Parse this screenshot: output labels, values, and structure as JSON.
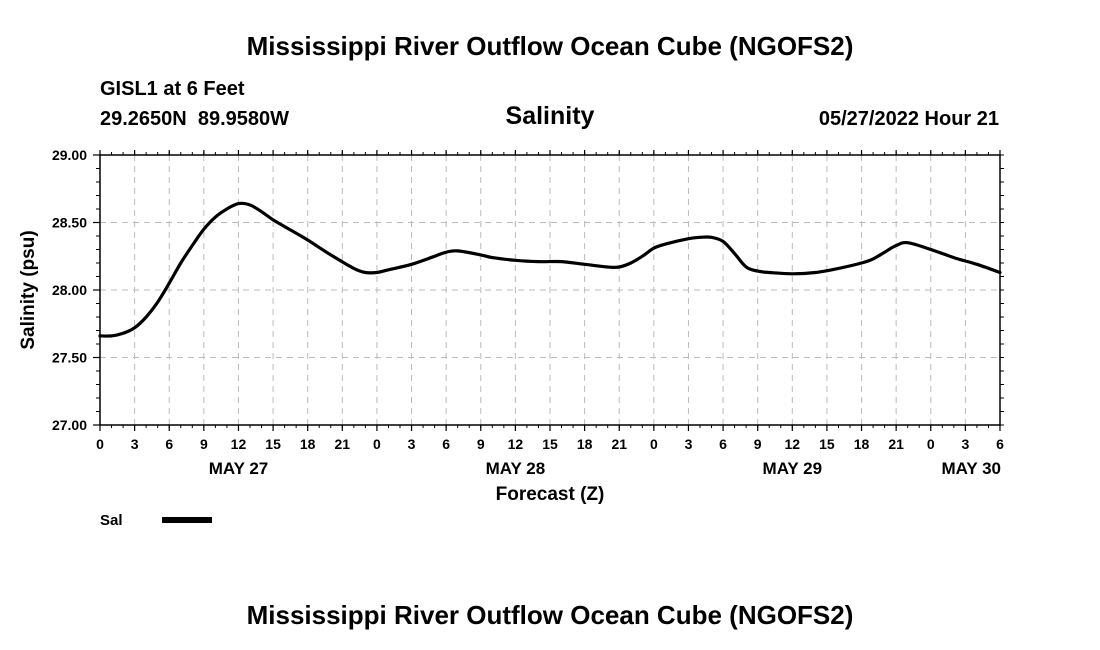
{
  "page": {
    "title": "Mississippi River Outflow Ocean Cube (NGOFS2)",
    "footer_title": "Mississippi River Outflow Ocean Cube (NGOFS2)",
    "station": "GISL1 at 6 Feet",
    "coords": "29.2650N  89.9580W",
    "variable": "Salinity",
    "run": "05/27/2022 Hour 21"
  },
  "chart_data": {
    "type": "line",
    "title": "Salinity",
    "xlabel": "Forecast (Z)",
    "ylabel": "Salinity (psu)",
    "ylim": [
      27.0,
      29.0
    ],
    "yticks": [
      27.0,
      27.5,
      28.0,
      28.5,
      29.0
    ],
    "ytick_labels": [
      "27.00",
      "27.50",
      "28.00",
      "28.50",
      "29.00"
    ],
    "xlim": [
      0,
      78
    ],
    "x_units": "hours from May 27 00Z",
    "xtick_labels": [
      "0",
      "3",
      "6",
      "9",
      "12",
      "15",
      "18",
      "21",
      "0",
      "3",
      "6",
      "9",
      "12",
      "15",
      "18",
      "21",
      "0",
      "3",
      "6",
      "9",
      "12",
      "15",
      "18",
      "21",
      "0",
      "3",
      "6"
    ],
    "date_labels": [
      {
        "label": "MAY 27",
        "x": 12
      },
      {
        "label": "MAY 28",
        "x": 36
      },
      {
        "label": "MAY 29",
        "x": 60
      },
      {
        "label": "MAY 30",
        "x": 78
      }
    ],
    "grid": true,
    "legend": {
      "position": "bottom-left",
      "label": "Sal"
    },
    "series": [
      {
        "name": "Sal",
        "x": [
          0,
          1,
          2,
          3,
          4,
          5,
          6,
          7,
          8,
          9,
          10,
          11,
          12,
          13,
          14,
          15,
          16,
          18,
          20,
          22,
          23,
          24,
          25,
          27,
          29,
          30,
          31,
          33,
          34,
          36,
          38,
          40,
          42,
          44,
          45,
          46,
          47,
          48,
          49,
          51,
          52,
          53,
          54,
          55,
          56,
          57,
          58,
          60,
          62,
          64,
          66,
          67,
          68,
          69,
          70,
          72,
          74,
          76,
          78
        ],
        "values": [
          27.66,
          27.66,
          27.68,
          27.72,
          27.8,
          27.91,
          28.05,
          28.2,
          28.33,
          28.45,
          28.54,
          28.6,
          28.64,
          28.63,
          28.58,
          28.52,
          28.47,
          28.37,
          28.26,
          28.16,
          28.13,
          28.13,
          28.15,
          28.19,
          28.25,
          28.28,
          28.29,
          28.26,
          28.24,
          28.22,
          28.21,
          28.21,
          28.19,
          28.17,
          28.17,
          28.2,
          28.25,
          28.31,
          28.34,
          28.38,
          28.39,
          28.39,
          28.36,
          28.27,
          28.17,
          28.14,
          28.13,
          28.12,
          28.13,
          28.16,
          28.2,
          28.23,
          28.28,
          28.33,
          28.35,
          28.3,
          28.24,
          28.19,
          28.13
        ]
      }
    ]
  }
}
